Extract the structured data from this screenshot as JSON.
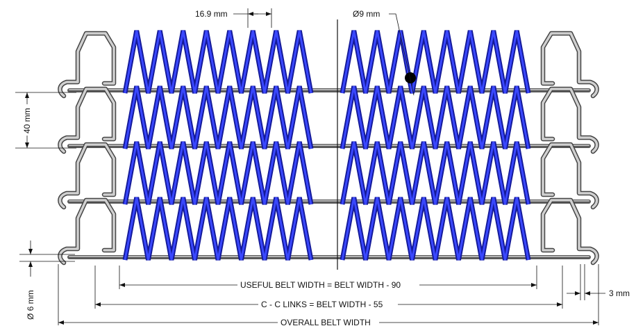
{
  "dimensions": {
    "pitch_top": "16.9 mm",
    "wire_diameter": "Ø9 mm",
    "row_pitch": "40 mm",
    "rod_diameter": "Ø 6 mm",
    "edge_offset": "3 mm",
    "useful_width": "USEFUL BELT WIDTH = BELT WIDTH - 90",
    "cc_links": "C - C LINKS = BELT WIDTH - 55",
    "overall_width": "OVERALL BELT WIDTH"
  },
  "colors": {
    "spiral": "#1a22b0",
    "rod": "#5a5a5a",
    "link": "#444444"
  }
}
